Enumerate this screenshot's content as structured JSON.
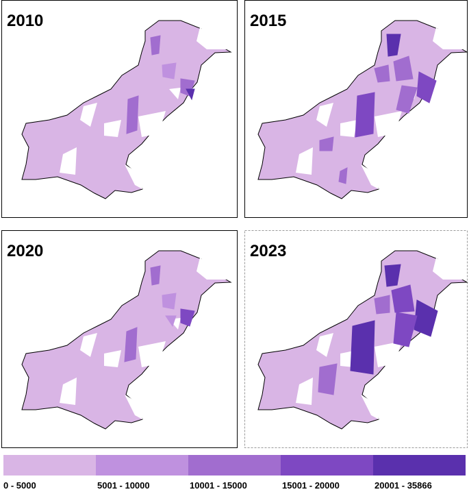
{
  "panels": [
    {
      "title": "2010"
    },
    {
      "title": "2015"
    },
    {
      "title": "2020"
    },
    {
      "title": "2023"
    }
  ],
  "legend": {
    "items": [
      {
        "label": "0 - 5000",
        "color": "#d9b5e5"
      },
      {
        "label": "5001 - 10000",
        "color": "#bf91df"
      },
      {
        "label": "10001 - 15000",
        "color": "#a16dcf"
      },
      {
        "label": "15001 - 20000",
        "color": "#7e48c2"
      },
      {
        "label": "20001 - 35866",
        "color": "#5a30ad"
      }
    ]
  }
}
